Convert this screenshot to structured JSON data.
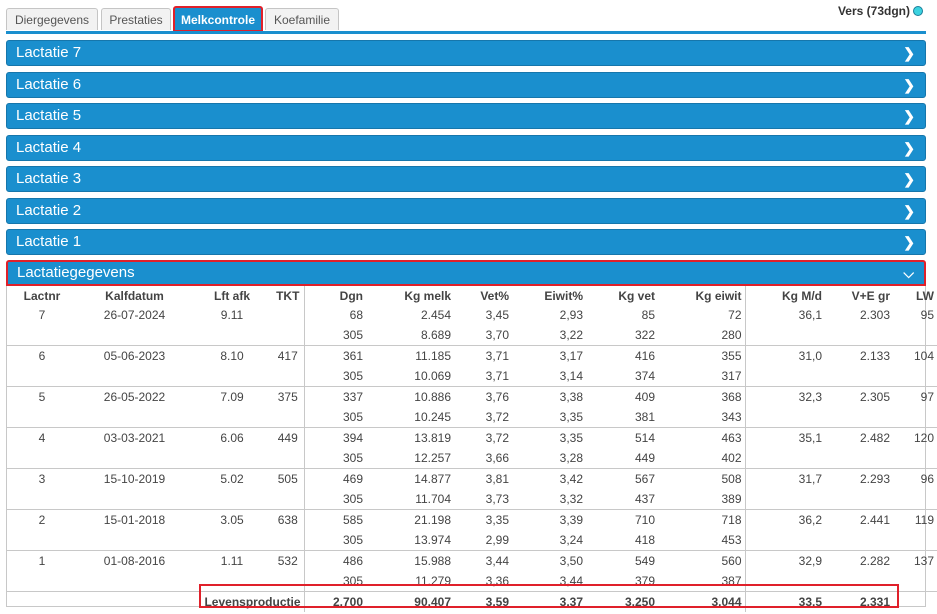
{
  "tabs": [
    {
      "label": "Diergegevens"
    },
    {
      "label": "Prestaties"
    },
    {
      "label": "Melkcontrole"
    },
    {
      "label": "Koefamilie"
    }
  ],
  "status": {
    "text": "Vers (73dgn)",
    "dot_color": "#3cd3e0"
  },
  "accordion": [
    {
      "label": "Lactatie 7"
    },
    {
      "label": "Lactatie 6"
    },
    {
      "label": "Lactatie 5"
    },
    {
      "label": "Lactatie 4"
    },
    {
      "label": "Lactatie 3"
    },
    {
      "label": "Lactatie 2"
    },
    {
      "label": "Lactatie 1"
    },
    {
      "label": "Lactatiegegevens"
    }
  ],
  "table": {
    "headers": [
      "Lactnr",
      "Kalfdatum",
      "Lft afk",
      "TKT",
      "Dgn",
      "Kg melk",
      "Vet%",
      "Eiwit%",
      "Kg vet",
      "Kg eiwit",
      "Kg M/d",
      "V+E gr",
      "LW"
    ],
    "rows": [
      {
        "a": [
          "7",
          "26-07-2024",
          "9.11",
          "",
          "68",
          "2.454",
          "3,45",
          "2,93",
          "85",
          "72",
          "36,1",
          "2.303",
          "95"
        ],
        "b": [
          "305",
          "8.689",
          "3,70",
          "3,22",
          "322",
          "280"
        ]
      },
      {
        "a": [
          "6",
          "05-06-2023",
          "8.10",
          "417",
          "361",
          "11.185",
          "3,71",
          "3,17",
          "416",
          "355",
          "31,0",
          "2.133",
          "104"
        ],
        "b": [
          "305",
          "10.069",
          "3,71",
          "3,14",
          "374",
          "317"
        ]
      },
      {
        "a": [
          "5",
          "26-05-2022",
          "7.09",
          "375",
          "337",
          "10.886",
          "3,76",
          "3,38",
          "409",
          "368",
          "32,3",
          "2.305",
          "97"
        ],
        "b": [
          "305",
          "10.245",
          "3,72",
          "3,35",
          "381",
          "343"
        ]
      },
      {
        "a": [
          "4",
          "03-03-2021",
          "6.06",
          "449",
          "394",
          "13.819",
          "3,72",
          "3,35",
          "514",
          "463",
          "35,1",
          "2.482",
          "120"
        ],
        "b": [
          "305",
          "12.257",
          "3,66",
          "3,28",
          "449",
          "402"
        ]
      },
      {
        "a": [
          "3",
          "15-10-2019",
          "5.02",
          "505",
          "469",
          "14.877",
          "3,81",
          "3,42",
          "567",
          "508",
          "31,7",
          "2.293",
          "96"
        ],
        "b": [
          "305",
          "11.704",
          "3,73",
          "3,32",
          "437",
          "389"
        ]
      },
      {
        "a": [
          "2",
          "15-01-2018",
          "3.05",
          "638",
          "585",
          "21.198",
          "3,35",
          "3,39",
          "710",
          "718",
          "36,2",
          "2.441",
          "119"
        ],
        "b": [
          "305",
          "13.974",
          "2,99",
          "3,24",
          "418",
          "453"
        ]
      },
      {
        "a": [
          "1",
          "01-08-2016",
          "1.11",
          "532",
          "486",
          "15.988",
          "3,44",
          "3,50",
          "549",
          "560",
          "32,9",
          "2.282",
          "137"
        ],
        "b": [
          "305",
          "11.279",
          "3,36",
          "3,44",
          "379",
          "387"
        ]
      }
    ],
    "total": {
      "label": "Levensproductie",
      "values": [
        "2.700",
        "90.407",
        "3,59",
        "3,37",
        "3.250",
        "3.044",
        "33,5",
        "2.331"
      ]
    }
  },
  "colors": {
    "accent": "#1a8fce",
    "highlight": "#e0202a"
  }
}
